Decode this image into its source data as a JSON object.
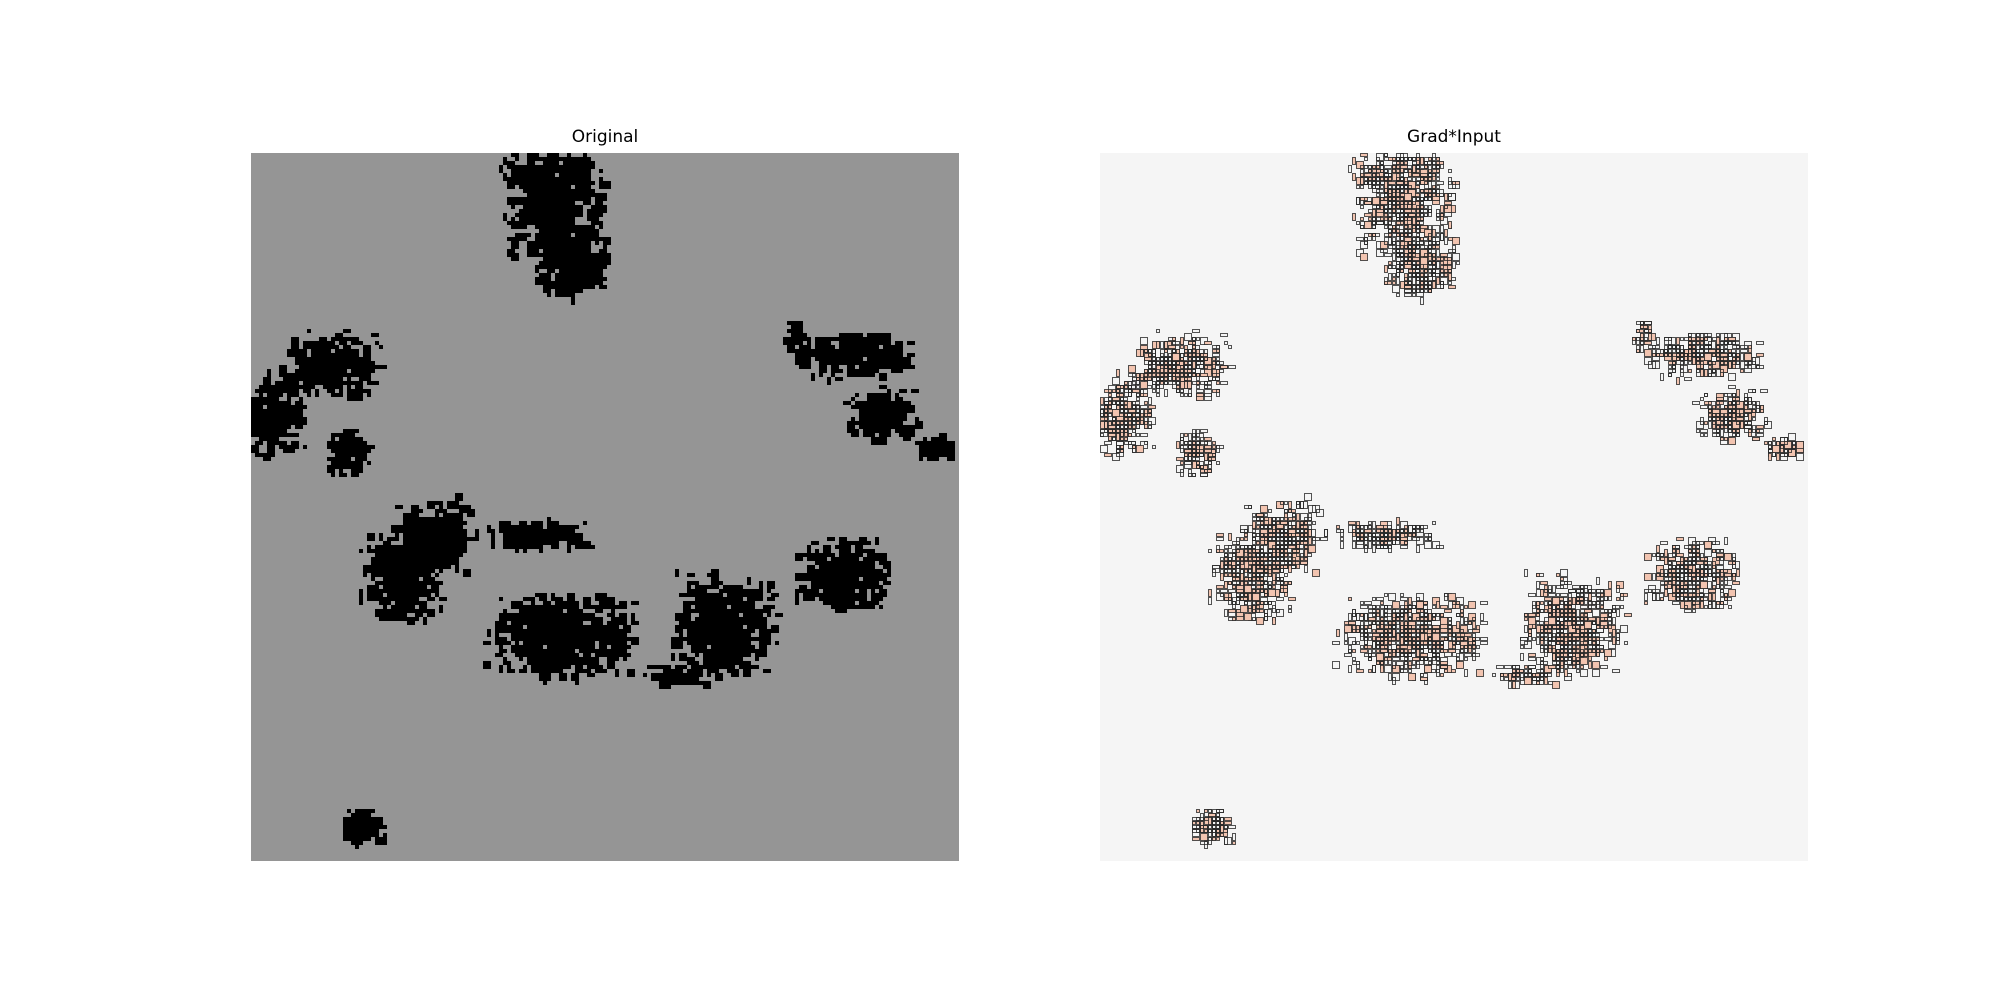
{
  "figure": {
    "panels": [
      {
        "title": "Original",
        "background": "#959595",
        "mark_color": "#000000"
      },
      {
        "title": "Grad*Input",
        "background": "#f5f5f5",
        "outline_color": "#2a2a2a",
        "highlight_color": "#f2c4b0"
      }
    ]
  }
}
